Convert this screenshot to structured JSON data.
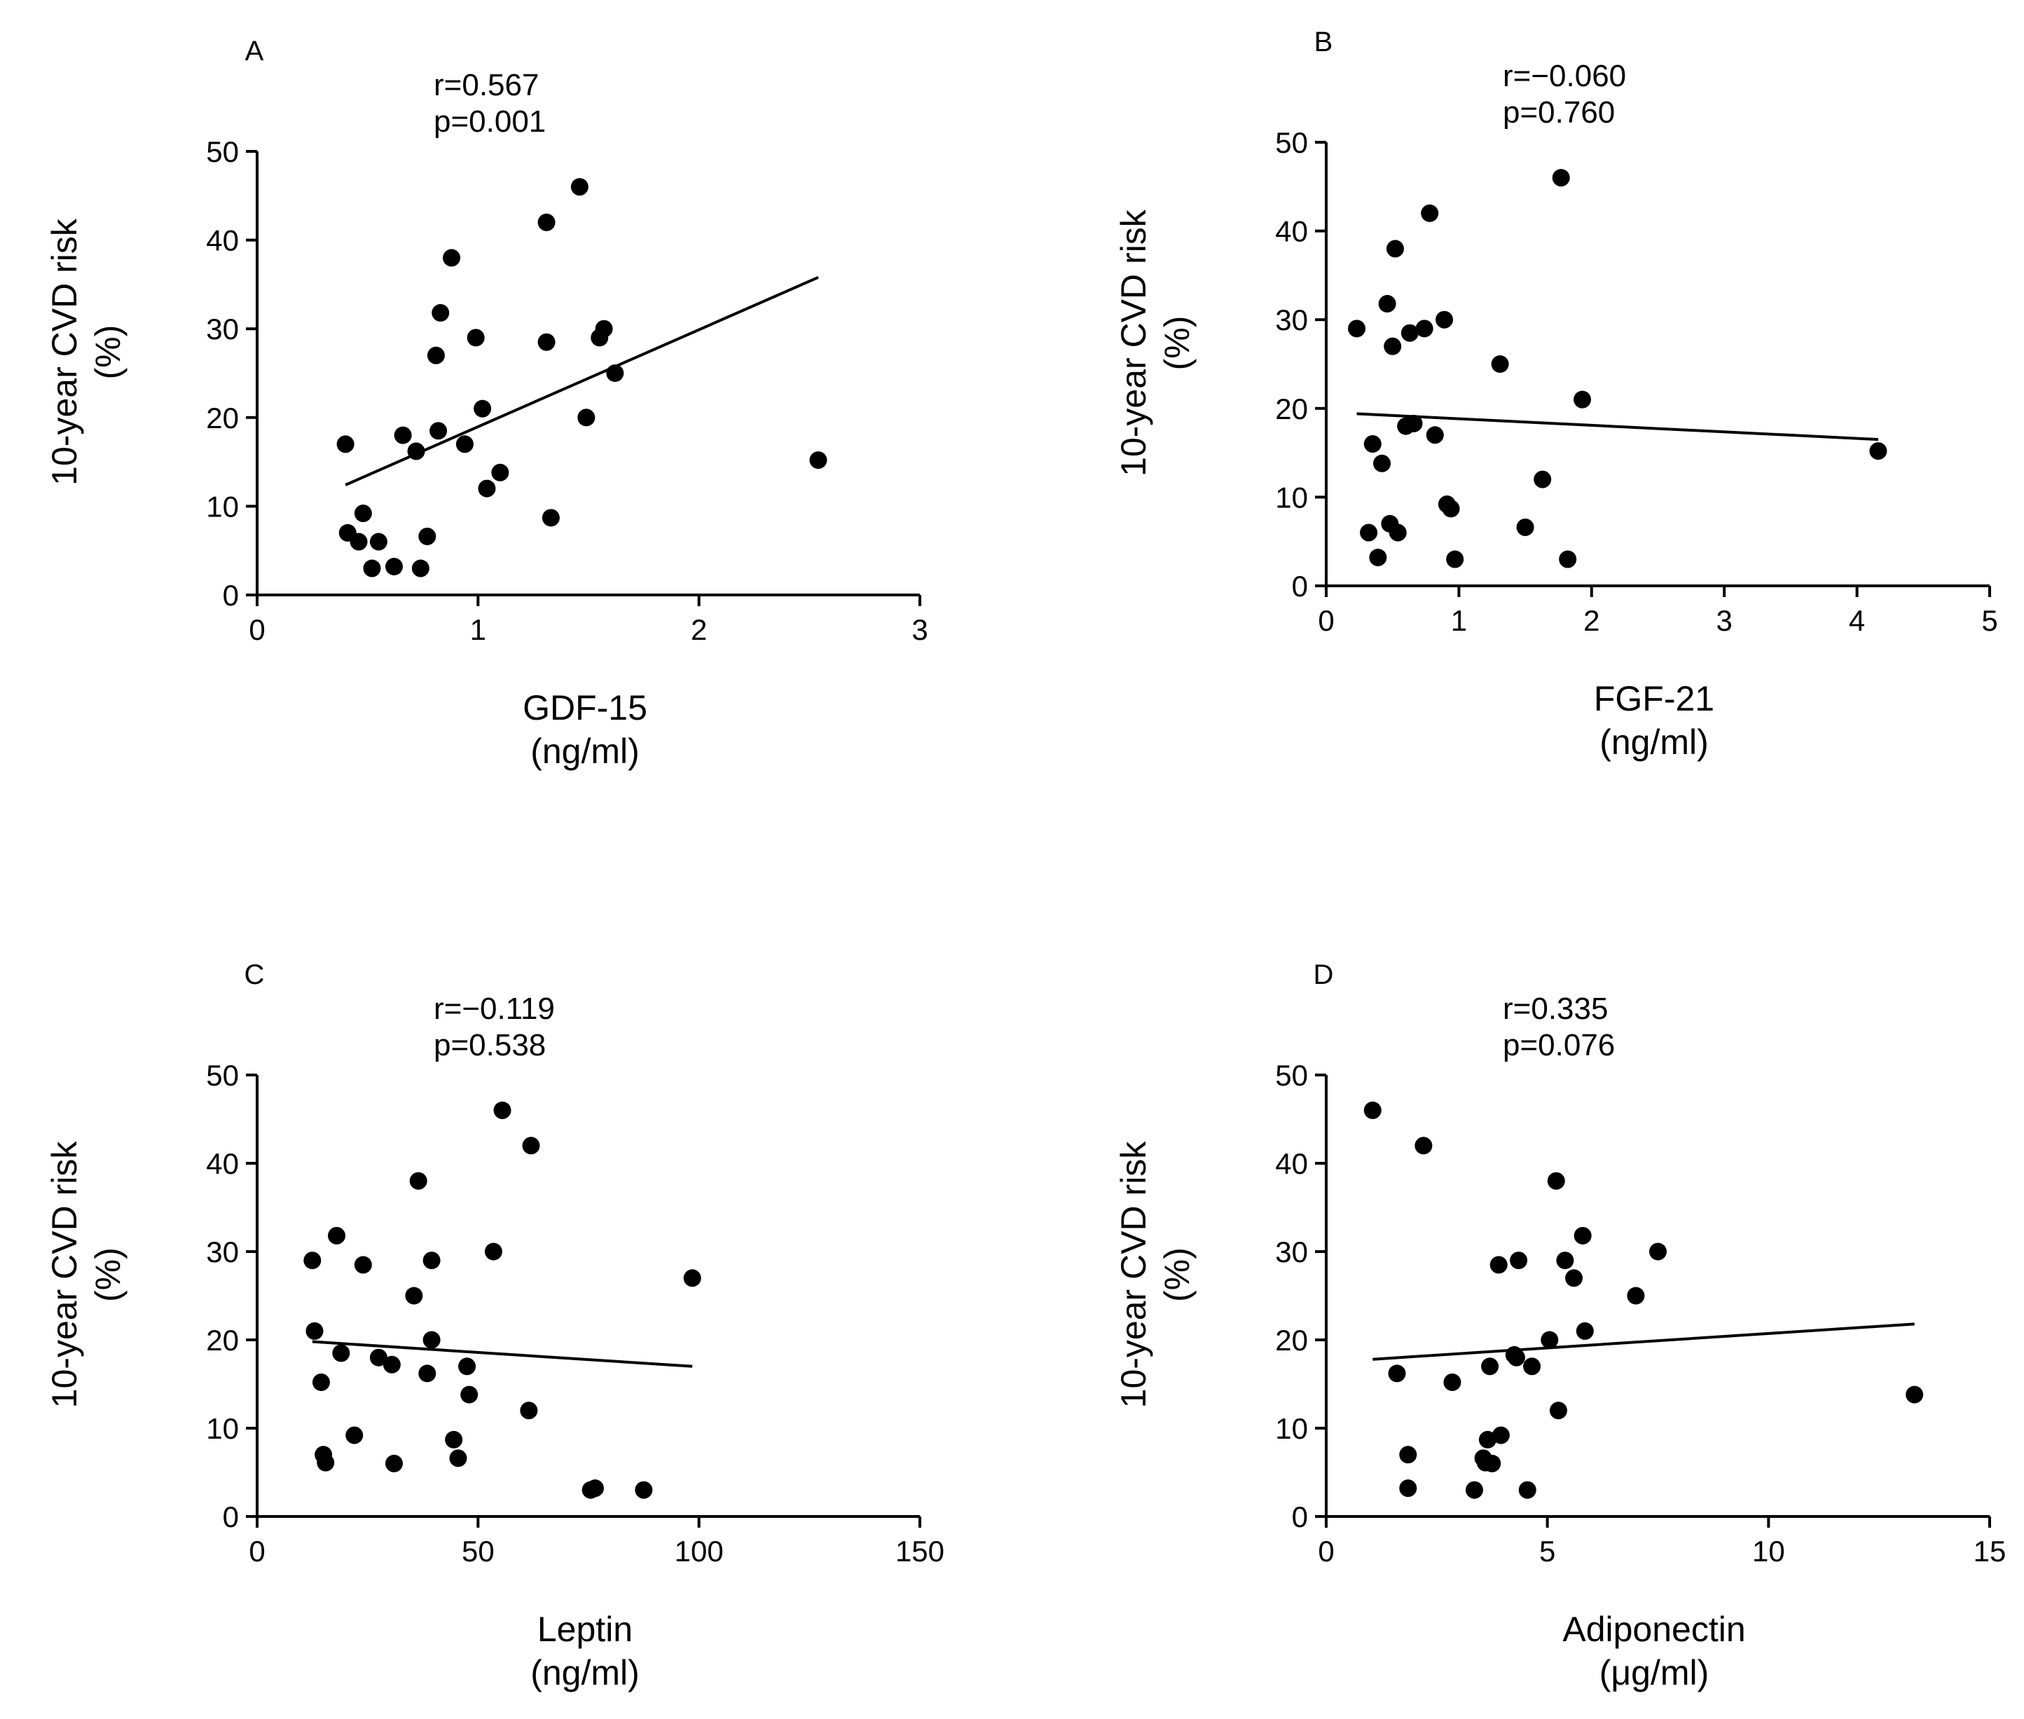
{
  "chart_data": [
    {
      "type": "scatter",
      "panel": "A",
      "stats": {
        "r": "r=0.567",
        "p": "p=0.001"
      },
      "xlabel": "GDF-15",
      "xunit": "(ng/ml)",
      "ylabel": "10-year CVD risk",
      "yunit": "(%)",
      "xlim": [
        0,
        3
      ],
      "ylim": [
        0,
        50
      ],
      "xticks": [
        "0",
        "1",
        "2",
        "3"
      ],
      "yticks": [
        "0",
        "10",
        "20",
        "30",
        "40",
        "50"
      ],
      "points": [
        {
          "x": 0.4,
          "y": 17
        },
        {
          "x": 0.41,
          "y": 7
        },
        {
          "x": 0.46,
          "y": 6
        },
        {
          "x": 0.48,
          "y": 9.2
        },
        {
          "x": 0.52,
          "y": 3
        },
        {
          "x": 0.55,
          "y": 6
        },
        {
          "x": 0.62,
          "y": 3.2
        },
        {
          "x": 0.66,
          "y": 18
        },
        {
          "x": 0.72,
          "y": 16.2
        },
        {
          "x": 0.74,
          "y": 3
        },
        {
          "x": 0.77,
          "y": 6.6
        },
        {
          "x": 0.81,
          "y": 27
        },
        {
          "x": 0.82,
          "y": 18.5
        },
        {
          "x": 0.83,
          "y": 31.8
        },
        {
          "x": 0.88,
          "y": 38
        },
        {
          "x": 0.94,
          "y": 17
        },
        {
          "x": 0.99,
          "y": 29
        },
        {
          "x": 1.02,
          "y": 21
        },
        {
          "x": 1.04,
          "y": 12
        },
        {
          "x": 1.1,
          "y": 13.8
        },
        {
          "x": 1.31,
          "y": 42
        },
        {
          "x": 1.31,
          "y": 28.5
        },
        {
          "x": 1.33,
          "y": 8.7
        },
        {
          "x": 1.46,
          "y": 46
        },
        {
          "x": 1.49,
          "y": 20
        },
        {
          "x": 1.55,
          "y": 29
        },
        {
          "x": 1.57,
          "y": 30
        },
        {
          "x": 1.62,
          "y": 25
        },
        {
          "x": 2.54,
          "y": 15.2
        }
      ],
      "fit": {
        "x": [
          0.4,
          2.54
        ],
        "y": [
          12.4,
          35.8
        ]
      }
    },
    {
      "type": "scatter",
      "panel": "B",
      "stats": {
        "r": "r=−0.060",
        "p": "p=0.760"
      },
      "xlabel": "FGF-21",
      "xunit": "(ng/ml)",
      "ylabel": "10-year CVD risk",
      "yunit": "(%)",
      "xlim": [
        0,
        5
      ],
      "ylim": [
        0,
        50
      ],
      "xticks": [
        "0",
        "1",
        "2",
        "3",
        "4",
        "5"
      ],
      "yticks": [
        "0",
        "10",
        "20",
        "30",
        "40",
        "50"
      ],
      "points": [
        {
          "x": 0.23,
          "y": 29
        },
        {
          "x": 0.32,
          "y": 6
        },
        {
          "x": 0.35,
          "y": 16
        },
        {
          "x": 0.39,
          "y": 3.2
        },
        {
          "x": 0.42,
          "y": 13.8
        },
        {
          "x": 0.46,
          "y": 31.8
        },
        {
          "x": 0.48,
          "y": 7
        },
        {
          "x": 0.5,
          "y": 27
        },
        {
          "x": 0.52,
          "y": 38
        },
        {
          "x": 0.54,
          "y": 6
        },
        {
          "x": 0.6,
          "y": 18
        },
        {
          "x": 0.63,
          "y": 28.5
        },
        {
          "x": 0.66,
          "y": 18.3
        },
        {
          "x": 0.74,
          "y": 29
        },
        {
          "x": 0.78,
          "y": 42
        },
        {
          "x": 0.82,
          "y": 17
        },
        {
          "x": 0.89,
          "y": 30
        },
        {
          "x": 0.91,
          "y": 9.2
        },
        {
          "x": 0.94,
          "y": 8.7
        },
        {
          "x": 0.97,
          "y": 3
        },
        {
          "x": 1.31,
          "y": 25
        },
        {
          "x": 1.5,
          "y": 6.6
        },
        {
          "x": 1.63,
          "y": 12
        },
        {
          "x": 1.77,
          "y": 46
        },
        {
          "x": 1.82,
          "y": 3
        },
        {
          "x": 1.93,
          "y": 21
        },
        {
          "x": 4.16,
          "y": 15.2
        }
      ],
      "fit": {
        "x": [
          0.23,
          4.16
        ],
        "y": [
          19.4,
          16.5
        ]
      }
    },
    {
      "type": "scatter",
      "panel": "C",
      "stats": {
        "r": "r=−0.119",
        "p": "p=0.538"
      },
      "xlabel": "Leptin",
      "xunit": "(ng/ml)",
      "ylabel": "10-year CVD risk",
      "yunit": "(%)",
      "xlim": [
        0,
        150
      ],
      "ylim": [
        0,
        50
      ],
      "xticks": [
        "0",
        "50",
        "100",
        "150"
      ],
      "yticks": [
        "0",
        "10",
        "20",
        "30",
        "40",
        "50"
      ],
      "points": [
        {
          "x": 12.5,
          "y": 29
        },
        {
          "x": 13,
          "y": 21
        },
        {
          "x": 14.5,
          "y": 15.2
        },
        {
          "x": 15,
          "y": 7
        },
        {
          "x": 15.5,
          "y": 6.1
        },
        {
          "x": 18,
          "y": 31.8
        },
        {
          "x": 19,
          "y": 18.5
        },
        {
          "x": 22,
          "y": 9.2
        },
        {
          "x": 24,
          "y": 28.5
        },
        {
          "x": 27.5,
          "y": 18
        },
        {
          "x": 30.5,
          "y": 17.2
        },
        {
          "x": 31,
          "y": 6
        },
        {
          "x": 35.5,
          "y": 25
        },
        {
          "x": 36.5,
          "y": 38
        },
        {
          "x": 38.5,
          "y": 16.2
        },
        {
          "x": 39.5,
          "y": 29
        },
        {
          "x": 39.5,
          "y": 20
        },
        {
          "x": 44.5,
          "y": 8.7
        },
        {
          "x": 45.5,
          "y": 6.6
        },
        {
          "x": 47.5,
          "y": 17
        },
        {
          "x": 48,
          "y": 13.8
        },
        {
          "x": 53.5,
          "y": 30
        },
        {
          "x": 55.5,
          "y": 46
        },
        {
          "x": 61.5,
          "y": 12
        },
        {
          "x": 62,
          "y": 42
        },
        {
          "x": 75.5,
          "y": 3
        },
        {
          "x": 76.5,
          "y": 3.2
        },
        {
          "x": 87.5,
          "y": 3
        },
        {
          "x": 98.5,
          "y": 27
        }
      ],
      "fit": {
        "x": [
          12.5,
          98.5
        ],
        "y": [
          19.8,
          17.0
        ]
      }
    },
    {
      "type": "scatter",
      "panel": "D",
      "stats": {
        "r": "r=0.335",
        "p": "p=0.076"
      },
      "xlabel": "Adiponectin",
      "xunit": "(μg/ml)",
      "ylabel": "10-year CVD risk",
      "yunit": "(%)",
      "xlim": [
        0,
        15
      ],
      "ylim": [
        0,
        50
      ],
      "xticks": [
        "0",
        "5",
        "10",
        "15"
      ],
      "yticks": [
        "0",
        "10",
        "20",
        "30",
        "40",
        "50"
      ],
      "points": [
        {
          "x": 1.05,
          "y": 46
        },
        {
          "x": 1.6,
          "y": 16.2
        },
        {
          "x": 1.85,
          "y": 7
        },
        {
          "x": 1.85,
          "y": 3.2
        },
        {
          "x": 2.2,
          "y": 42
        },
        {
          "x": 2.85,
          "y": 15.2
        },
        {
          "x": 3.35,
          "y": 3
        },
        {
          "x": 3.55,
          "y": 6.6
        },
        {
          "x": 3.6,
          "y": 6.1
        },
        {
          "x": 3.65,
          "y": 8.7
        },
        {
          "x": 3.7,
          "y": 17
        },
        {
          "x": 3.75,
          "y": 6
        },
        {
          "x": 3.9,
          "y": 28.5
        },
        {
          "x": 3.95,
          "y": 9.2
        },
        {
          "x": 4.25,
          "y": 18.3
        },
        {
          "x": 4.3,
          "y": 18
        },
        {
          "x": 4.35,
          "y": 29
        },
        {
          "x": 4.55,
          "y": 3
        },
        {
          "x": 4.65,
          "y": 17
        },
        {
          "x": 5.05,
          "y": 20
        },
        {
          "x": 5.2,
          "y": 38
        },
        {
          "x": 5.25,
          "y": 12
        },
        {
          "x": 5.4,
          "y": 29
        },
        {
          "x": 5.6,
          "y": 27
        },
        {
          "x": 5.8,
          "y": 31.8
        },
        {
          "x": 5.85,
          "y": 21
        },
        {
          "x": 7.0,
          "y": 25
        },
        {
          "x": 7.5,
          "y": 30
        },
        {
          "x": 13.3,
          "y": 13.8
        }
      ],
      "fit": {
        "x": [
          1.05,
          13.3
        ],
        "y": [
          17.8,
          21.8
        ]
      }
    }
  ]
}
